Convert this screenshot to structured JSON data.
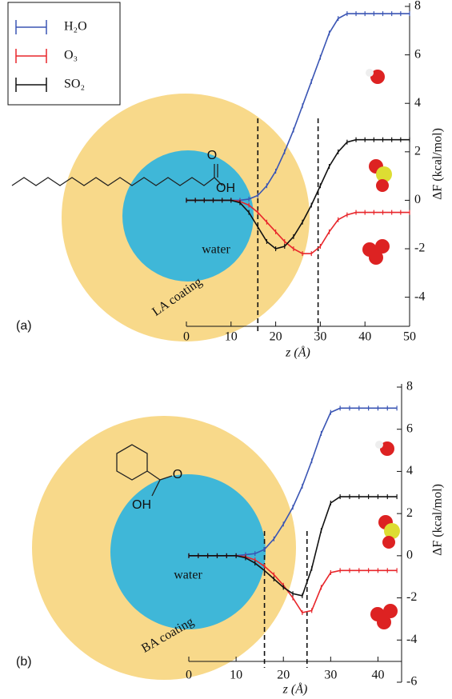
{
  "legend_title": null,
  "chart_data": [
    {
      "type": "line",
      "panel_label": "(a)",
      "x_label": "z (Å)",
      "y_label": "ΔF (kcal/mol)",
      "annotations": [
        "water",
        "LA coating",
        "O",
        "OH"
      ],
      "xlim": [
        0,
        50
      ],
      "xticks": [
        0,
        10,
        20,
        30,
        40,
        50
      ],
      "ylim": [
        -5.2,
        8
      ],
      "yticks": [
        -4,
        -2,
        0,
        2,
        4,
        6,
        8
      ],
      "vlines": [
        16,
        29.5
      ],
      "x": [
        0,
        2,
        4,
        6,
        8,
        10,
        12,
        14,
        16,
        18,
        20,
        22,
        24,
        26,
        28,
        30,
        32,
        34,
        36,
        38,
        40,
        42,
        44,
        46,
        48,
        50
      ],
      "series": [
        {
          "name": "H₂O",
          "color": "#3a55b4",
          "values": [
            0,
            0,
            0,
            0,
            0,
            0,
            0,
            0.05,
            0.2,
            0.6,
            1.2,
            2.0,
            2.9,
            3.9,
            4.9,
            5.9,
            6.9,
            7.5,
            7.7,
            7.7,
            7.7,
            7.7,
            7.7,
            7.7,
            7.7,
            7.7
          ]
        },
        {
          "name": "O₃",
          "color": "#e8262b",
          "values": [
            0,
            0,
            0,
            0,
            0,
            0,
            -0.05,
            -0.2,
            -0.5,
            -0.9,
            -1.3,
            -1.7,
            -2.0,
            -2.2,
            -2.2,
            -1.9,
            -1.3,
            -0.8,
            -0.6,
            -0.5,
            -0.5,
            -0.5,
            -0.5,
            -0.5,
            -0.5,
            -0.5
          ]
        },
        {
          "name": "SO₂",
          "color": "#111111",
          "values": [
            0,
            0,
            0,
            0,
            0,
            0,
            -0.1,
            -0.5,
            -1.1,
            -1.7,
            -2.0,
            -1.9,
            -1.5,
            -0.9,
            -0.2,
            0.6,
            1.4,
            2.0,
            2.4,
            2.5,
            2.5,
            2.5,
            2.5,
            2.5,
            2.5,
            2.5
          ]
        }
      ]
    },
    {
      "type": "line",
      "panel_label": "(b)",
      "x_label": "z (Å)",
      "y_label": "ΔF (kcal/mol)",
      "annotations": [
        "water",
        "BA coating",
        "O",
        "OH"
      ],
      "xlim": [
        0,
        45
      ],
      "xticks": [
        0,
        10,
        20,
        30,
        40
      ],
      "ylim": [
        -6,
        8
      ],
      "yticks": [
        -6,
        -4,
        -2,
        0,
        2,
        4,
        6,
        8
      ],
      "vlines": [
        16,
        25
      ],
      "x": [
        0,
        2,
        4,
        6,
        8,
        10,
        12,
        14,
        16,
        18,
        20,
        22,
        24,
        26,
        28,
        30,
        32,
        34,
        36,
        38,
        40,
        42,
        44
      ],
      "series": [
        {
          "color": "#3a55b4",
          "values": [
            0,
            0,
            0,
            0,
            0,
            0,
            0.05,
            0.1,
            0.3,
            0.8,
            1.5,
            2.3,
            3.3,
            4.5,
            5.8,
            6.8,
            7.0,
            7.0,
            7.0,
            7.0,
            7.0,
            7.0,
            7.0
          ]
        },
        {
          "color": "#e8262b",
          "values": [
            0,
            0,
            0,
            0,
            0,
            0,
            -0.05,
            -0.2,
            -0.5,
            -0.9,
            -1.4,
            -2.0,
            -2.7,
            -2.6,
            -1.5,
            -0.8,
            -0.7,
            -0.7,
            -0.7,
            -0.7,
            -0.7,
            -0.7,
            -0.7
          ]
        },
        {
          "color": "#111111",
          "values": [
            0,
            0,
            0,
            0,
            0,
            0,
            -0.1,
            -0.35,
            -0.7,
            -1.1,
            -1.5,
            -1.8,
            -1.9,
            -0.6,
            1.2,
            2.5,
            2.8,
            2.8,
            2.8,
            2.8,
            2.8,
            2.8,
            2.8
          ]
        }
      ]
    }
  ]
}
